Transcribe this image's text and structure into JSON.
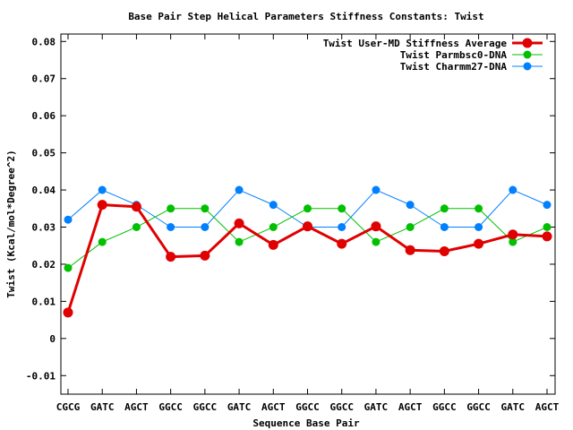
{
  "chart_data": {
    "type": "line",
    "title": "Base Pair Step Helical Parameters Stiffness Constants: Twist",
    "xlabel": "Sequence Base Pair",
    "ylabel": "Twist (Kcal/mol*Degree^2)",
    "categories": [
      "CGCG",
      "GATC",
      "AGCT",
      "GGCC",
      "GGCC",
      "GATC",
      "AGCT",
      "GGCC",
      "GGCC",
      "GATC",
      "AGCT",
      "GGCC",
      "GGCC",
      "GATC",
      "AGCT"
    ],
    "ylim": [
      -0.015,
      0.082
    ],
    "yticks": [
      -0.01,
      0,
      0.01,
      0.02,
      0.03,
      0.04,
      0.05,
      0.06,
      0.07,
      0.08
    ],
    "ytick_labels": [
      "-0.01",
      "0",
      "0.01",
      "0.02",
      "0.03",
      "0.04",
      "0.05",
      "0.06",
      "0.07",
      "0.08"
    ],
    "grid": false,
    "legend_position": "top-right",
    "series": [
      {
        "name": "Twist User-MD Stiffness Average",
        "color": "#e00000",
        "values": [
          0.007,
          0.036,
          0.0355,
          0.022,
          0.0223,
          0.031,
          0.0252,
          0.0302,
          0.0255,
          0.0302,
          0.0238,
          0.0235,
          0.0255,
          0.028,
          0.0275
        ]
      },
      {
        "name": "Twist Parmbsc0-DNA",
        "color": "#00c000",
        "values": [
          0.019,
          0.026,
          0.03,
          0.035,
          0.035,
          0.026,
          0.03,
          0.035,
          0.035,
          0.026,
          0.03,
          0.035,
          0.035,
          0.026,
          0.03
        ]
      },
      {
        "name": "Twist Charmm27-DNA",
        "color": "#0080ff",
        "values": [
          0.032,
          0.04,
          0.036,
          0.03,
          0.03,
          0.04,
          0.036,
          0.03,
          0.03,
          0.04,
          0.036,
          0.03,
          0.03,
          0.04,
          0.036
        ]
      }
    ]
  }
}
